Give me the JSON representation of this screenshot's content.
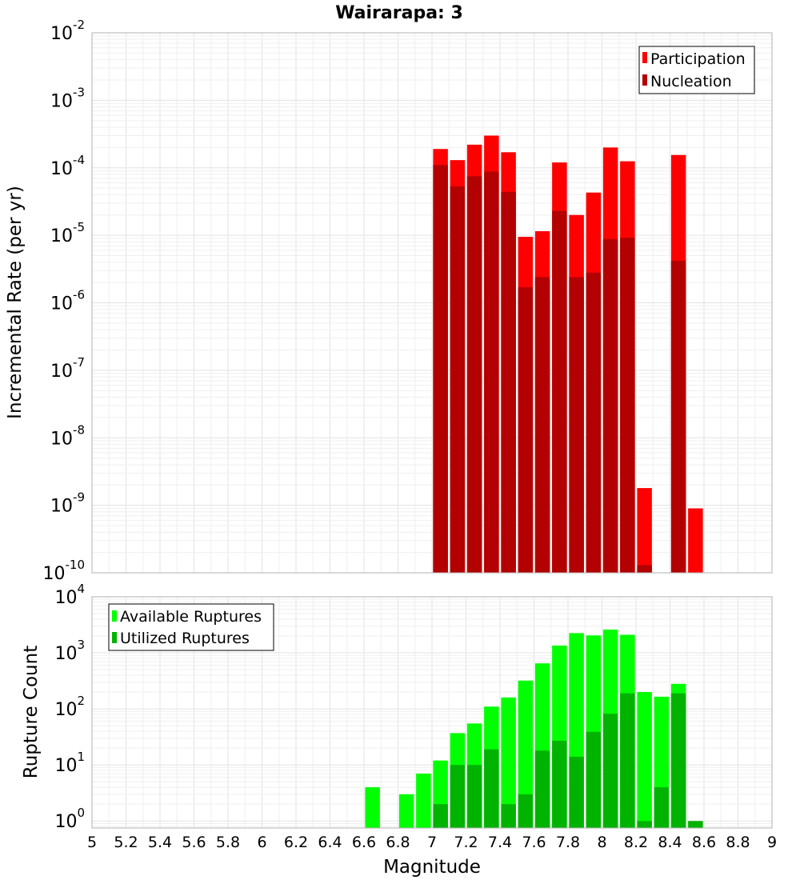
{
  "chart_data": [
    {
      "type": "bar",
      "title": "Wairarapa: 3",
      "xlabel": "",
      "ylabel": "Incremental Rate (per yr)",
      "scale": "log",
      "ylim": [
        1e-10,
        0.01
      ],
      "xlim": [
        5,
        9
      ],
      "legend_position": "top-right",
      "y_ticks": [
        {
          "base": "10",
          "exp": "-10"
        },
        {
          "base": "10",
          "exp": "-9"
        },
        {
          "base": "10",
          "exp": "-8"
        },
        {
          "base": "10",
          "exp": "-7"
        },
        {
          "base": "10",
          "exp": "-6"
        },
        {
          "base": "10",
          "exp": "-5"
        },
        {
          "base": "10",
          "exp": "-4"
        },
        {
          "base": "10",
          "exp": "-3"
        },
        {
          "base": "10",
          "exp": "-2"
        }
      ],
      "series": [
        {
          "name": "Participation",
          "color": "#ff0000",
          "x": [
            7.05,
            7.15,
            7.25,
            7.35,
            7.45,
            7.55,
            7.65,
            7.75,
            7.85,
            7.95,
            8.05,
            8.15,
            8.25,
            8.45,
            8.55
          ],
          "values": [
            0.00019,
            0.00013,
            0.00022,
            0.0003,
            0.00017,
            9.5e-06,
            1.15e-05,
            0.00012,
            2e-05,
            4.3e-05,
            0.0002,
            0.000125,
            1.8e-09,
            0.000155,
            9e-10
          ]
        },
        {
          "name": "Nucleation",
          "color": "#b30000",
          "x": [
            7.05,
            7.15,
            7.25,
            7.35,
            7.45,
            7.55,
            7.65,
            7.75,
            7.85,
            7.95,
            8.05,
            8.15,
            8.25,
            8.45
          ],
          "values": [
            0.00011,
            5.3e-05,
            7.5e-05,
            8.8e-05,
            4.4e-05,
            1.7e-06,
            2.4e-06,
            2.3e-05,
            2.4e-06,
            2.8e-06,
            8.8e-06,
            9.2e-06,
            1.3e-10,
            4.2e-06
          ]
        }
      ]
    },
    {
      "type": "bar",
      "title": "",
      "xlabel": "Magnitude",
      "ylabel": "Rupture Count",
      "scale": "log",
      "ylim": [
        0.75,
        10000
      ],
      "xlim": [
        5,
        9
      ],
      "legend_position": "top-left",
      "y_ticks": [
        {
          "base": "10",
          "exp": "0"
        },
        {
          "base": "10",
          "exp": "1"
        },
        {
          "base": "10",
          "exp": "2"
        },
        {
          "base": "10",
          "exp": "3"
        },
        {
          "base": "10",
          "exp": "4"
        }
      ],
      "x_ticks": [
        "5",
        "5.2",
        "5.4",
        "5.6",
        "5.8",
        "6",
        "6.2",
        "6.4",
        "6.6",
        "6.8",
        "7",
        "7.2",
        "7.4",
        "7.6",
        "7.8",
        "8",
        "8.2",
        "8.4",
        "8.6",
        "8.8",
        "9"
      ],
      "series": [
        {
          "name": "Available Ruptures",
          "color": "#00ff00",
          "x": [
            6.65,
            6.85,
            6.95,
            7.05,
            7.15,
            7.25,
            7.35,
            7.45,
            7.55,
            7.65,
            7.75,
            7.85,
            7.95,
            8.05,
            8.15,
            8.25,
            8.35,
            8.45
          ],
          "values": [
            4,
            3,
            7,
            12,
            37,
            55,
            110,
            160,
            320,
            650,
            1350,
            2250,
            2050,
            2600,
            2100,
            200,
            165,
            280
          ]
        },
        {
          "name": "Utilized Ruptures",
          "color": "#00b300",
          "x": [
            7.05,
            7.15,
            7.25,
            7.35,
            7.45,
            7.55,
            7.65,
            7.75,
            7.85,
            7.95,
            8.05,
            8.15,
            8.25,
            8.35,
            8.45,
            8.55
          ],
          "values": [
            2,
            10,
            10,
            19,
            2,
            3,
            18,
            27,
            14,
            39,
            82,
            190,
            1,
            4,
            190,
            1
          ]
        }
      ]
    }
  ]
}
